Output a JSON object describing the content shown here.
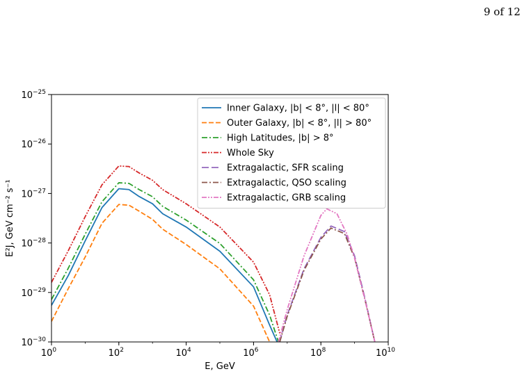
{
  "page": {
    "number_label": "9 of 12"
  },
  "chart_data": {
    "type": "line",
    "title": "",
    "xlabel": "E, GeV",
    "ylabel": "E²J, GeV cm⁻² s⁻¹",
    "xscale": "log",
    "yscale": "log",
    "xlim": [
      1,
      10000000000
    ],
    "ylim": [
      1e-30,
      1e-25
    ],
    "grid": false,
    "legend_position": "top-right",
    "x_ticks": [
      {
        "value": 1,
        "base": "10",
        "exp": "0"
      },
      {
        "value": 100,
        "base": "10",
        "exp": "2"
      },
      {
        "value": 10000,
        "base": "10",
        "exp": "4"
      },
      {
        "value": 1000000,
        "base": "10",
        "exp": "6"
      },
      {
        "value": 100000000,
        "base": "10",
        "exp": "8"
      },
      {
        "value": 10000000000,
        "base": "10",
        "exp": "10"
      }
    ],
    "y_ticks": [
      {
        "value": 1e-30,
        "base": "10",
        "exp": "−30"
      },
      {
        "value": 1e-29,
        "base": "10",
        "exp": "−29"
      },
      {
        "value": 1e-28,
        "base": "10",
        "exp": "−28"
      },
      {
        "value": 1e-27,
        "base": "10",
        "exp": "−27"
      },
      {
        "value": 1e-26,
        "base": "10",
        "exp": "−26"
      },
      {
        "value": 1e-25,
        "base": "10",
        "exp": "−25"
      }
    ],
    "series": [
      {
        "name": "Inner Galaxy, |b| < 8°, |l| < 80°",
        "color": "#1f77b4",
        "dash": "solid",
        "x": [
          1,
          3.16,
          10,
          31.6,
          100,
          200,
          400,
          1000,
          2000,
          10000,
          100000,
          1000000,
          3000000,
          5000000
        ],
        "y": [
          5.5e-30,
          2.2e-29,
          1.1e-28,
          5.2e-28,
          1.25e-27,
          1.2e-27,
          8.7e-28,
          6.2e-28,
          3.9e-28,
          2.1e-28,
          6.8e-29,
          1.3e-29,
          2.2e-30,
          1e-30
        ]
      },
      {
        "name": "Outer Galaxy, |b| < 8°, |l| > 80°",
        "color": "#ff7f0e",
        "dash": "dashed",
        "x": [
          1,
          3.16,
          10,
          31.6,
          100,
          200,
          400,
          1000,
          2000,
          10000,
          100000,
          1000000,
          3000000
        ],
        "y": [
          2.6e-30,
          1.2e-29,
          5.2e-29,
          2.5e-28,
          6e-28,
          5.8e-28,
          4.4e-28,
          3e-28,
          1.9e-28,
          9.3e-29,
          3e-29,
          5.3e-30,
          1e-30
        ]
      },
      {
        "name": "High Latitudes, |b| > 8°",
        "color": "#2ca02c",
        "dash": "dashdot",
        "x": [
          1,
          3.16,
          10,
          31.6,
          100,
          200,
          400,
          1000,
          2000,
          10000,
          100000,
          1000000,
          3000000,
          5500000
        ],
        "y": [
          7.2e-30,
          3.1e-29,
          1.5e-28,
          6.8e-28,
          1.65e-27,
          1.6e-27,
          1.2e-27,
          8.6e-28,
          5.5e-28,
          2.9e-28,
          9.8e-29,
          1.8e-29,
          3.5e-30,
          1e-30
        ]
      },
      {
        "name": "Whole Sky",
        "color": "#d62728",
        "dash": "dashdotdot",
        "x": [
          1,
          3.16,
          10,
          31.6,
          100,
          200,
          400,
          1000,
          2000,
          10000,
          100000,
          1000000,
          3000000,
          6000000
        ],
        "y": [
          1.6e-29,
          7e-29,
          3.4e-28,
          1.5e-27,
          3.6e-27,
          3.5e-27,
          2.6e-27,
          1.85e-27,
          1.2e-27,
          6.2e-28,
          2.1e-28,
          4.1e-29,
          9e-30,
          1.5e-30
        ]
      },
      {
        "name": "Extragalactic, SFR scaling",
        "color": "#9467bd",
        "dash": "longdash",
        "x": [
          6000000,
          10000000,
          31600000,
          100000000,
          200000000,
          500000000,
          1000000000,
          2000000000,
          4000000000
        ],
        "y": [
          1e-30,
          3.5e-30,
          3e-29,
          1.3e-28,
          2.2e-28,
          1.7e-28,
          5.5e-29,
          8e-30,
          1e-30
        ]
      },
      {
        "name": "Extragalactic, QSO scaling",
        "color": "#8c564b",
        "dash": "dashdot",
        "x": [
          6000000,
          10000000,
          31600000,
          100000000,
          200000000,
          500000000,
          1000000000,
          2000000000,
          4000000000
        ],
        "y": [
          1e-30,
          3.3e-30,
          2.8e-29,
          1.2e-28,
          2e-28,
          1.55e-28,
          5e-29,
          7.5e-30,
          1e-30
        ]
      },
      {
        "name": "Extragalactic, GRB scaling",
        "color": "#e377c2",
        "dash": "dashdotdot",
        "x": [
          5500000,
          10000000,
          31600000,
          100000000,
          150000000,
          300000000,
          600000000,
          1000000000,
          2000000000,
          4000000000
        ],
        "y": [
          1e-30,
          4.5e-30,
          5.5e-29,
          3.6e-28,
          4.9e-28,
          3.9e-28,
          1.5e-28,
          5e-29,
          7.5e-30,
          1e-30
        ]
      }
    ]
  }
}
